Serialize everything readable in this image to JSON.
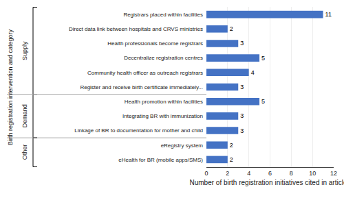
{
  "chart_data": {
    "type": "bar",
    "orientation": "horizontal",
    "categories": [
      "eHealth for BR (mobile apps/SMS)",
      "eRegistry system",
      "Linkage of BR to documentation for mother and child",
      "Integrating BR with immunization",
      "Health promotion within facilities",
      "Register and receive birth certificate immediately...",
      "Community health officer as outreach registrars",
      "Decentralize registration centres",
      "Health professionals become registrars",
      "Direct data link between hospitals and CRVS ministries",
      "Registrars placed within facilities"
    ],
    "values": [
      2,
      2,
      3,
      3,
      5,
      3,
      4,
      5,
      3,
      2,
      11
    ],
    "color": "#4472C4",
    "xlabel": "Number of birth registration initiatives cited in articles",
    "ylabel": "Birth registration intervention and category",
    "xlim": [
      0,
      12
    ],
    "xticks": [
      0,
      2,
      4,
      6,
      8,
      10,
      12
    ],
    "grid": true,
    "data_labels": true,
    "sections": [
      {
        "label": "Other",
        "categories": [
          "eHealth for BR (mobile apps/SMS)",
          "eRegistry system"
        ]
      },
      {
        "label": "Demand",
        "categories": [
          "Linkage of BR to documentation for mother and child",
          "Integrating BR with immunization",
          "Health promotion within facilities"
        ]
      },
      {
        "label": "Supply",
        "categories": [
          "Register and receive birth certificate immediately...",
          "Community health officer as outreach registrars",
          "Decentralize registration centres",
          "Health professionals become registrars",
          "Direct data link between hospitals and CRVS ministries",
          "Registrars placed within facilities"
        ]
      }
    ]
  }
}
